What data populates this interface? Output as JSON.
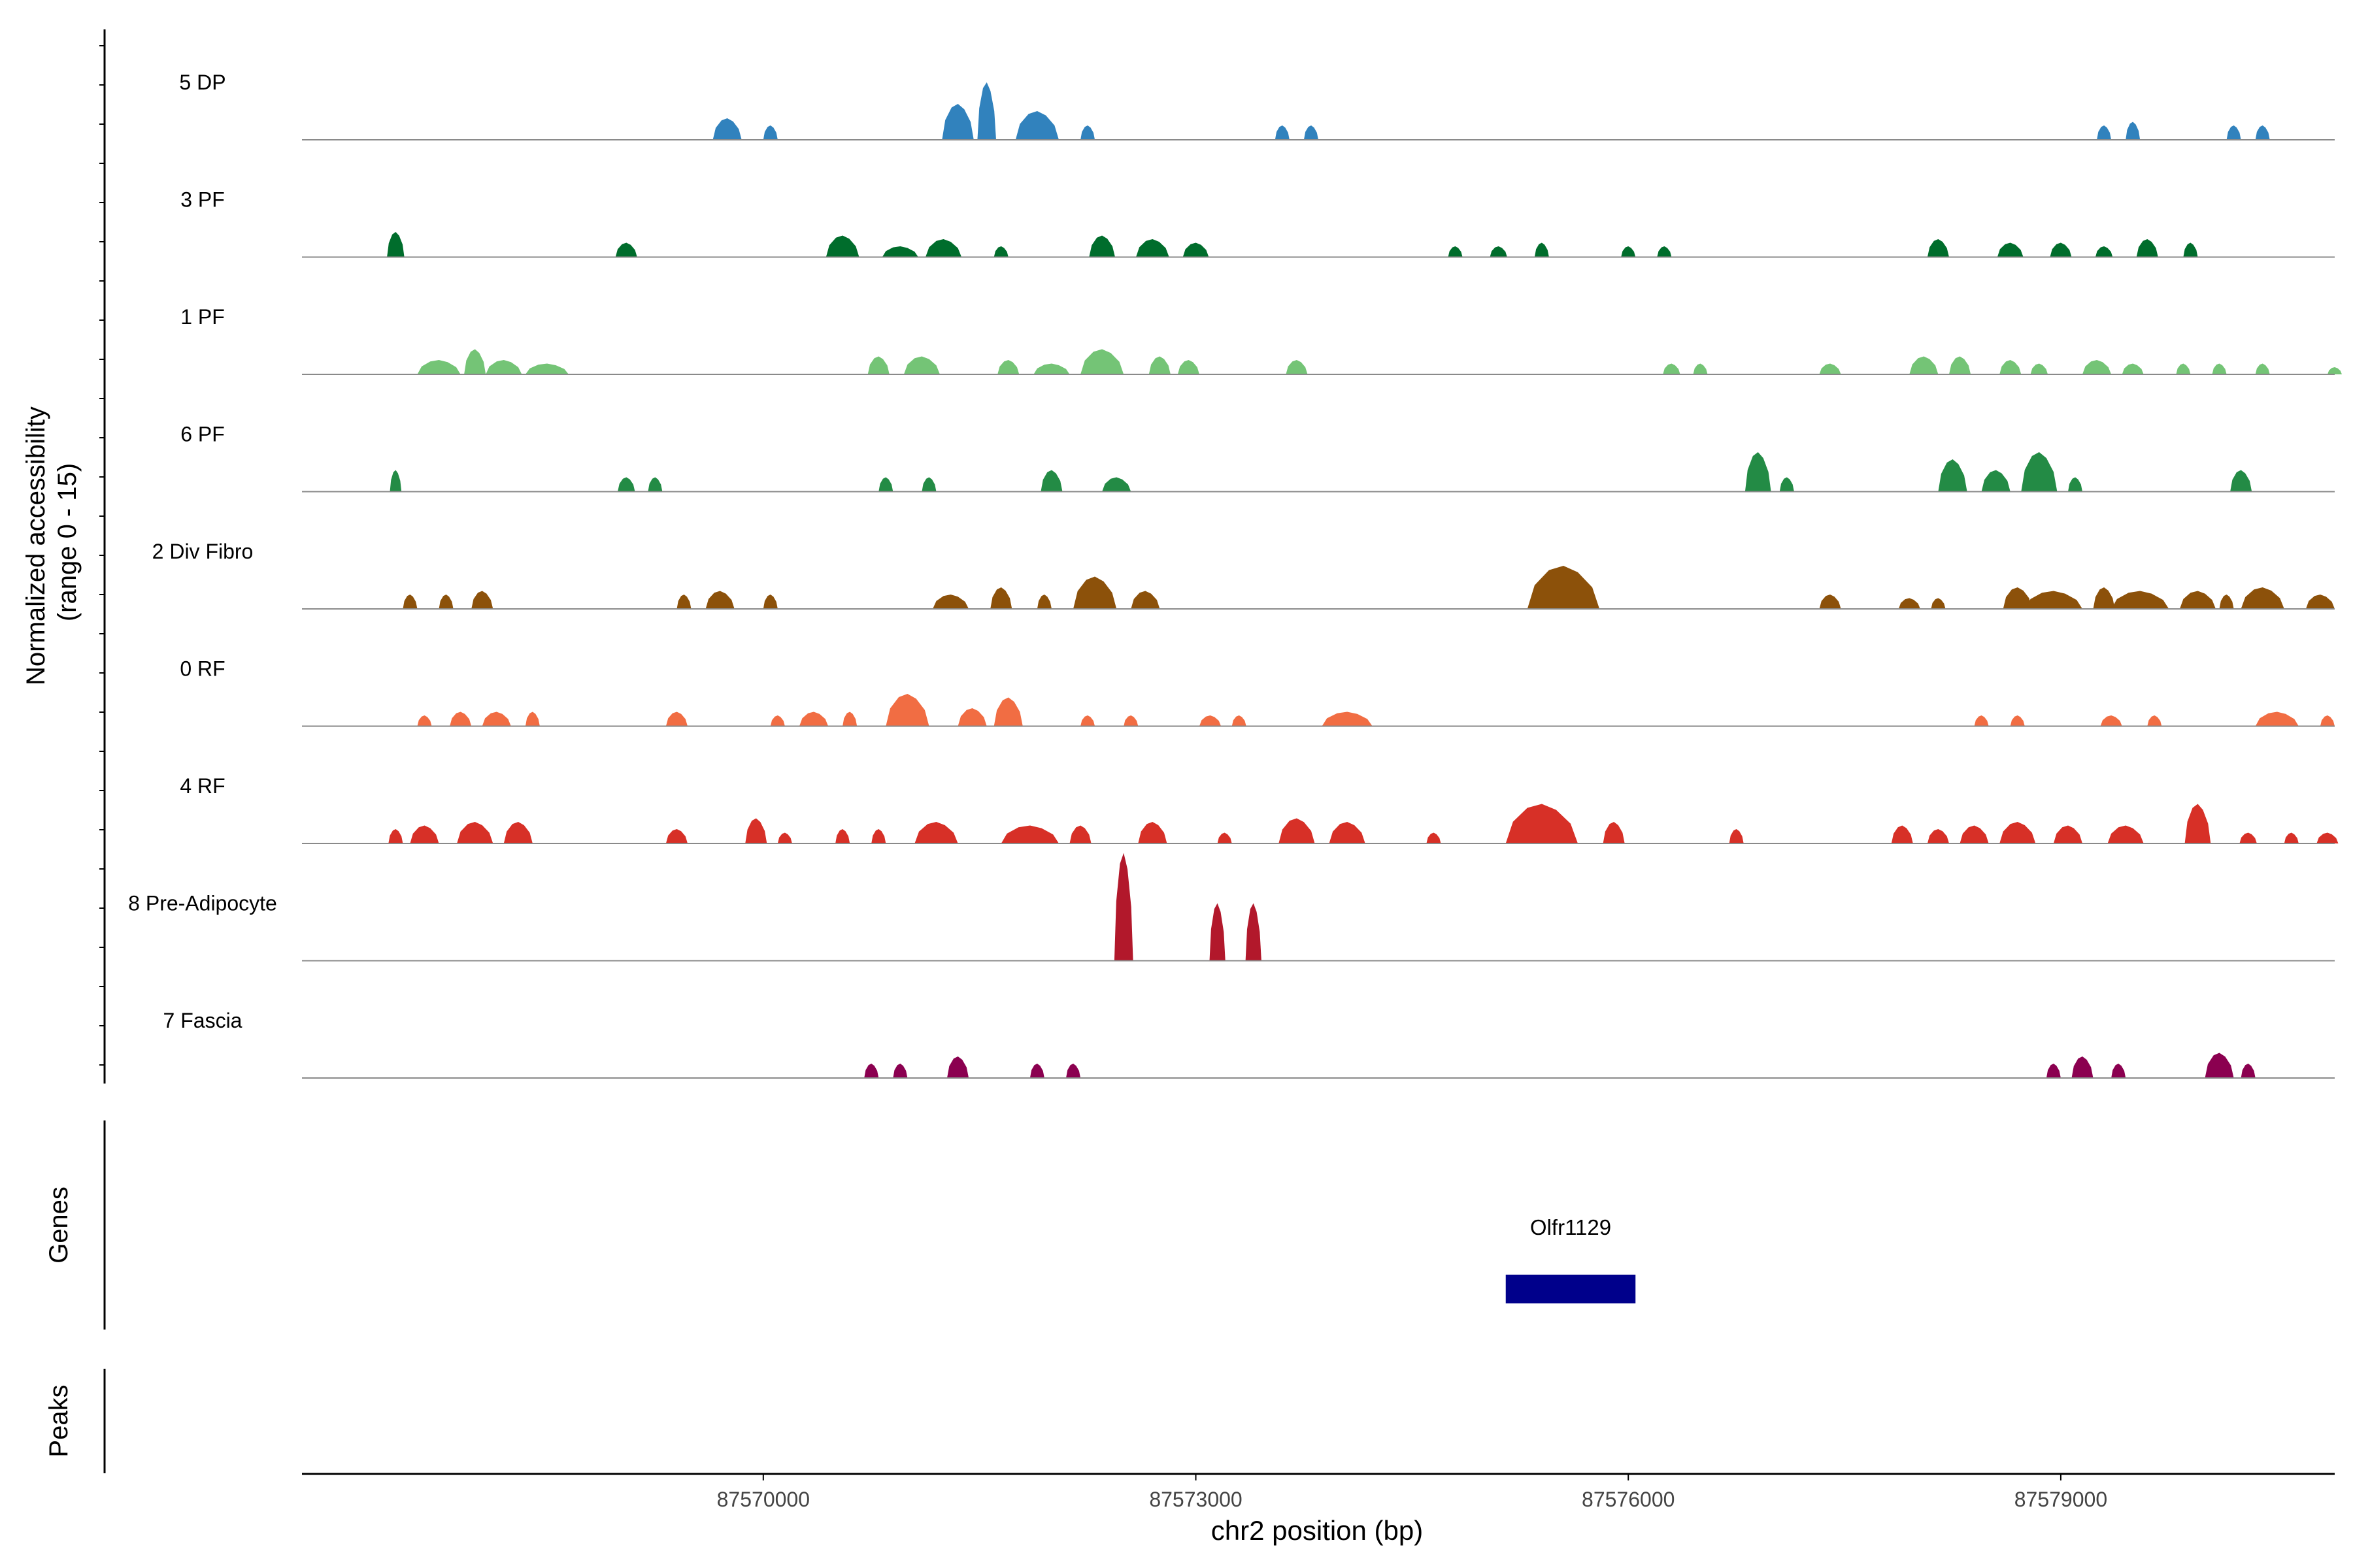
{
  "chart_data": {
    "type": "area",
    "region": "chr2",
    "ylabel_lines": [
      "Normalized accessibility",
      "(range 0 - 15)"
    ],
    "xlabel": "chr2 position (bp)",
    "xlim": [
      87566800,
      87580900
    ],
    "ylim": [
      0,
      15
    ],
    "x_ticks": [
      87570000,
      87573000,
      87576000,
      87579000
    ],
    "x_tick_labels": [
      "87570000",
      "87573000",
      "87576000",
      "87579000"
    ],
    "tracks": [
      {
        "name": "5 DP",
        "color": "#3182bd",
        "peaks": [
          [
            87569750,
            3.0,
            200
          ],
          [
            87570050,
            2.0,
            100
          ],
          [
            87571350,
            5.0,
            220
          ],
          [
            87571550,
            8.0,
            130
          ],
          [
            87571900,
            4.0,
            300
          ],
          [
            87572250,
            2.0,
            100
          ],
          [
            87573600,
            2.0,
            100
          ],
          [
            87573800,
            2.0,
            100
          ],
          [
            87579300,
            2.0,
            100
          ],
          [
            87579500,
            2.5,
            100
          ],
          [
            87580200,
            2.0,
            100
          ],
          [
            87580400,
            2.0,
            100
          ]
        ]
      },
      {
        "name": "3 PF",
        "color": "#006d2c",
        "peaks": [
          [
            87567450,
            3.5,
            120
          ],
          [
            87569050,
            2.0,
            150
          ],
          [
            87570550,
            3.0,
            230
          ],
          [
            87570950,
            1.5,
            250
          ],
          [
            87571250,
            2.5,
            250
          ],
          [
            87571650,
            1.5,
            100
          ],
          [
            87572350,
            3.0,
            180
          ],
          [
            87572700,
            2.5,
            230
          ],
          [
            87573000,
            2.0,
            180
          ],
          [
            87574800,
            1.5,
            100
          ],
          [
            87575100,
            1.5,
            120
          ],
          [
            87575400,
            2.0,
            100
          ],
          [
            87576000,
            1.5,
            100
          ],
          [
            87576250,
            1.5,
            100
          ],
          [
            87578150,
            2.5,
            150
          ],
          [
            87578650,
            2.0,
            180
          ],
          [
            87579000,
            2.0,
            150
          ],
          [
            87579300,
            1.5,
            120
          ],
          [
            87579600,
            2.5,
            150
          ],
          [
            87579900,
            2.0,
            100
          ]
        ]
      },
      {
        "name": "1 PF",
        "color": "#74c476",
        "peaks": [
          [
            87567750,
            2.0,
            300
          ],
          [
            87568000,
            3.5,
            150
          ],
          [
            87568200,
            2.0,
            250
          ],
          [
            87568500,
            1.5,
            300
          ],
          [
            87570800,
            2.5,
            150
          ],
          [
            87571100,
            2.5,
            250
          ],
          [
            87571700,
            2.0,
            150
          ],
          [
            87572000,
            1.5,
            250
          ],
          [
            87572350,
            3.5,
            300
          ],
          [
            87572750,
            2.5,
            150
          ],
          [
            87572950,
            2.0,
            150
          ],
          [
            87573700,
            2.0,
            150
          ],
          [
            87576300,
            1.5,
            120
          ],
          [
            87576500,
            1.5,
            100
          ],
          [
            87577400,
            1.5,
            150
          ],
          [
            87578050,
            2.5,
            200
          ],
          [
            87578300,
            2.5,
            150
          ],
          [
            87578650,
            2.0,
            150
          ],
          [
            87578850,
            1.5,
            120
          ],
          [
            87579250,
            2.0,
            200
          ],
          [
            87579500,
            1.5,
            150
          ],
          [
            87579850,
            1.5,
            100
          ],
          [
            87580100,
            1.5,
            100
          ],
          [
            87580400,
            1.5,
            100
          ],
          [
            87580900,
            1.0,
            100
          ]
        ]
      },
      {
        "name": "6 PF",
        "color": "#238b45",
        "peaks": [
          [
            87567450,
            3.0,
            80
          ],
          [
            87569050,
            2.0,
            120
          ],
          [
            87569250,
            2.0,
            100
          ],
          [
            87570850,
            2.0,
            100
          ],
          [
            87571150,
            2.0,
            100
          ],
          [
            87572000,
            3.0,
            150
          ],
          [
            87572450,
            2.0,
            200
          ],
          [
            87576900,
            5.5,
            180
          ],
          [
            87577100,
            2.0,
            100
          ],
          [
            87578250,
            4.5,
            200
          ],
          [
            87578550,
            3.0,
            200
          ],
          [
            87578850,
            5.5,
            250
          ],
          [
            87579100,
            2.0,
            100
          ],
          [
            87580250,
            3.0,
            150
          ]
        ]
      },
      {
        "name": "2 Div Fibro",
        "color": "#8c510a",
        "peaks": [
          [
            87567550,
            2.0,
            100
          ],
          [
            87567800,
            2.0,
            100
          ],
          [
            87568050,
            2.5,
            150
          ],
          [
            87569450,
            2.0,
            100
          ],
          [
            87569700,
            2.5,
            200
          ],
          [
            87570050,
            2.0,
            100
          ],
          [
            87571300,
            2.0,
            250
          ],
          [
            87571650,
            3.0,
            150
          ],
          [
            87571950,
            2.0,
            100
          ],
          [
            87572300,
            4.5,
            300
          ],
          [
            87572650,
            2.5,
            200
          ],
          [
            87575550,
            6.0,
            500
          ],
          [
            87577400,
            2.0,
            150
          ],
          [
            87577950,
            1.5,
            150
          ],
          [
            87578150,
            1.5,
            100
          ],
          [
            87578700,
            3.0,
            200
          ],
          [
            87578950,
            2.5,
            400
          ],
          [
            87579300,
            3.0,
            150
          ],
          [
            87579550,
            2.5,
            400
          ],
          [
            87579950,
            2.5,
            250
          ],
          [
            87580150,
            2.0,
            100
          ],
          [
            87580400,
            3.0,
            300
          ],
          [
            87580800,
            2.0,
            200
          ]
        ]
      },
      {
        "name": "0 RF",
        "color": "#f16d43",
        "peaks": [
          [
            87567650,
            1.5,
            100
          ],
          [
            87567900,
            2.0,
            150
          ],
          [
            87568150,
            2.0,
            200
          ],
          [
            87568400,
            2.0,
            100
          ],
          [
            87569400,
            2.0,
            150
          ],
          [
            87570100,
            1.5,
            100
          ],
          [
            87570350,
            2.0,
            200
          ],
          [
            87570600,
            2.0,
            100
          ],
          [
            87571000,
            4.5,
            300
          ],
          [
            87571450,
            2.5,
            200
          ],
          [
            87571700,
            4.0,
            200
          ],
          [
            87572250,
            1.5,
            100
          ],
          [
            87572550,
            1.5,
            100
          ],
          [
            87573100,
            1.5,
            150
          ],
          [
            87573300,
            1.5,
            100
          ],
          [
            87574050,
            2.0,
            350
          ],
          [
            87578450,
            1.5,
            100
          ],
          [
            87578700,
            1.5,
            100
          ],
          [
            87579350,
            1.5,
            150
          ],
          [
            87579650,
            1.5,
            100
          ],
          [
            87580500,
            2.0,
            300
          ],
          [
            87580850,
            1.5,
            100
          ]
        ]
      },
      {
        "name": "4 RF",
        "color": "#d73027",
        "peaks": [
          [
            87567450,
            2.0,
            100
          ],
          [
            87567650,
            2.5,
            200
          ],
          [
            87568000,
            3.0,
            250
          ],
          [
            87568300,
            3.0,
            200
          ],
          [
            87569400,
            2.0,
            150
          ],
          [
            87569950,
            3.5,
            150
          ],
          [
            87570150,
            1.5,
            100
          ],
          [
            87570550,
            2.0,
            100
          ],
          [
            87570800,
            2.0,
            100
          ],
          [
            87571200,
            3.0,
            300
          ],
          [
            87571850,
            2.5,
            400
          ],
          [
            87572200,
            2.5,
            150
          ],
          [
            87572700,
            3.0,
            200
          ],
          [
            87573200,
            1.5,
            100
          ],
          [
            87573700,
            3.5,
            250
          ],
          [
            87574050,
            3.0,
            250
          ],
          [
            87574650,
            1.5,
            100
          ],
          [
            87575400,
            5.5,
            500
          ],
          [
            87575900,
            3.0,
            150
          ],
          [
            87576750,
            2.0,
            100
          ],
          [
            87577900,
            2.5,
            150
          ],
          [
            87578150,
            2.0,
            150
          ],
          [
            87578400,
            2.5,
            200
          ],
          [
            87578700,
            3.0,
            250
          ],
          [
            87579050,
            2.5,
            200
          ],
          [
            87579450,
            2.5,
            250
          ],
          [
            87579950,
            5.5,
            180
          ],
          [
            87580300,
            1.5,
            120
          ],
          [
            87580600,
            1.5,
            100
          ],
          [
            87580850,
            1.5,
            150
          ]
        ]
      },
      {
        "name": "8 Pre-Adipocyte",
        "color": "#b2182b",
        "peaks": [
          [
            87572500,
            15.0,
            130
          ],
          [
            87573150,
            8.0,
            110
          ],
          [
            87573400,
            8.0,
            110
          ]
        ]
      },
      {
        "name": "7 Fascia",
        "color": "#8b0050",
        "peaks": [
          [
            87570750,
            2.0,
            100
          ],
          [
            87570950,
            2.0,
            100
          ],
          [
            87571350,
            3.0,
            150
          ],
          [
            87571900,
            2.0,
            100
          ],
          [
            87572150,
            2.0,
            100
          ],
          [
            87578950,
            2.0,
            100
          ],
          [
            87579150,
            3.0,
            150
          ],
          [
            87579400,
            2.0,
            100
          ],
          [
            87580100,
            3.5,
            200
          ],
          [
            87580300,
            2.0,
            100
          ]
        ]
      }
    ],
    "genes": [
      {
        "name": "Olfr1129",
        "start": 87575150,
        "end": 87576050,
        "color": "#00008b"
      }
    ],
    "panel_labels": [
      "Genes",
      "Peaks"
    ]
  }
}
